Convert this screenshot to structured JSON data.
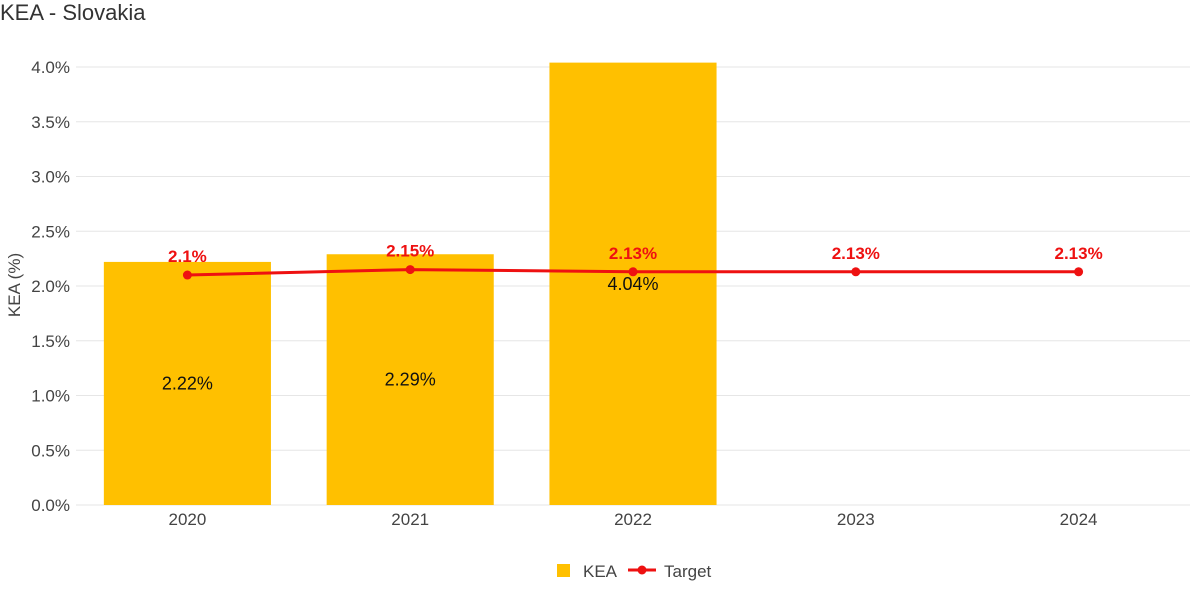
{
  "chart_data": {
    "type": "bar",
    "title": "KEA - Slovakia",
    "xlabel": "",
    "ylabel": "KEA (%)",
    "ylim": [
      0,
      4.0
    ],
    "yticks": [
      "0.0%",
      "0.5%",
      "1.0%",
      "1.5%",
      "2.0%",
      "2.5%",
      "3.0%",
      "3.5%",
      "4.0%"
    ],
    "categories": [
      "2020",
      "2021",
      "2022",
      "2023",
      "2024"
    ],
    "series": [
      {
        "name": "KEA",
        "type": "bar",
        "color": "#ffc000",
        "values": [
          2.22,
          2.29,
          4.04,
          null,
          null
        ],
        "labels": [
          "2.22%",
          "2.29%",
          "4.04%",
          "",
          ""
        ]
      },
      {
        "name": "Target",
        "type": "line",
        "color": "#ee1111",
        "values": [
          2.1,
          2.15,
          2.13,
          2.13,
          2.13
        ],
        "labels": [
          "2.1%",
          "2.15%",
          "2.13%",
          "2.13%",
          "2.13%"
        ]
      }
    ],
    "grid": true,
    "legend_position": "bottom-center"
  }
}
